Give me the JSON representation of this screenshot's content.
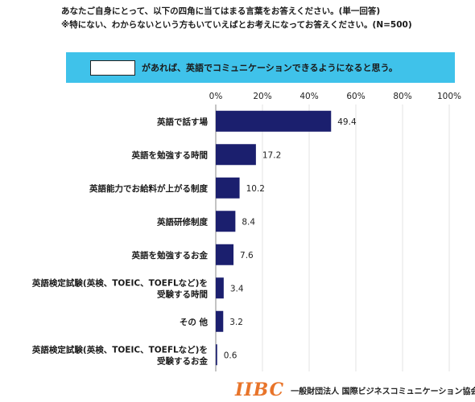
{
  "question": {
    "line1": "あなたご自身にとって、以下の四角に当てはまる言葉をお答えください。(単一回答)",
    "line2": "※特にない、わからないという方もいていえばとお考えになってお答えください。(N=500)"
  },
  "banner": {
    "text": "があれば、英語でコミュニケーションできるようになると思う。"
  },
  "logo": {
    "mark": "IIBC",
    "name": "一般財団法人 国際ビジネスコミュニケーション協会"
  },
  "colors": {
    "bar": "#1b1f6e",
    "banner": "#3fc2ea",
    "logo": "#e8742a",
    "grid": "#e3e3e3"
  },
  "chart_data": {
    "type": "bar",
    "orientation": "horizontal",
    "xlim": [
      0,
      100
    ],
    "ticks": [
      "0%",
      "20%",
      "40%",
      "60%",
      "80%",
      "100%"
    ],
    "tick_values": [
      0,
      20,
      40,
      60,
      80,
      100
    ],
    "grid": true,
    "categories": [
      [
        "英語で話す場"
      ],
      [
        "英語を勉強する時間"
      ],
      [
        "英語能力でお給料が上がる制度"
      ],
      [
        "英語研修制度"
      ],
      [
        "英語を勉強するお金"
      ],
      [
        "英語検定試験(英検、TOEIC、TOEFLなど)を",
        "受験する時間"
      ],
      [
        "その 他"
      ],
      [
        "英語検定試験(英検、TOEIC、TOEFLなど)を",
        "受験するお金"
      ]
    ],
    "values": [
      49.4,
      17.2,
      10.2,
      8.4,
      7.6,
      3.4,
      3.2,
      0.6
    ],
    "value_labels": [
      "49.4",
      "17.2",
      "10.2",
      "8.4",
      "7.6",
      "3.4",
      "3.2",
      "0.6"
    ]
  }
}
